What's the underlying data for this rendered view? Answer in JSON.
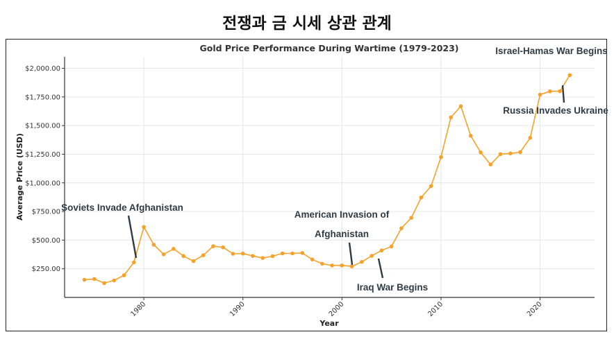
{
  "heading": "전쟁과 금 시세 상관 관계",
  "chart_data": {
    "type": "line",
    "title": "Gold Price Performance During Wartime (1979-2023)",
    "xlabel": "Year",
    "ylabel": "Average Price (USD)",
    "xlim": [
      1972,
      2025.5
    ],
    "ylim": [
      0,
      2100
    ],
    "x_ticks": [
      1980,
      1990,
      2000,
      2010,
      2020
    ],
    "y_ticks": [
      250,
      500,
      750,
      1000,
      1250,
      1500,
      1750,
      2000
    ],
    "y_tick_labels": [
      "$250.00",
      "$500.00",
      "$750.00",
      "$1,000.00",
      "$1,250.00",
      "$1,500.00",
      "$1,750.00",
      "$2,000.00"
    ],
    "grid": true,
    "line_color": "#f7a128",
    "series": [
      {
        "x": [
          1974,
          1975,
          1976,
          1977,
          1978,
          1979,
          1980,
          1981,
          1982,
          1983,
          1984,
          1985,
          1986,
          1987,
          1988,
          1989,
          1990,
          1991,
          1992,
          1993,
          1994,
          1995,
          1996,
          1997,
          1998,
          1999,
          2000,
          2001,
          2002,
          2003,
          2004,
          2005,
          2006,
          2007,
          2008,
          2009,
          2010,
          2011,
          2012,
          2013,
          2014,
          2015,
          2016,
          2017,
          2018,
          2019,
          2020,
          2021,
          2022,
          2023
        ],
        "values": [
          154,
          161,
          125,
          148,
          193,
          306,
          615,
          460,
          376,
          424,
          361,
          317,
          368,
          447,
          437,
          381,
          383,
          362,
          344,
          360,
          384,
          384,
          388,
          331,
          294,
          279,
          279,
          271,
          310,
          363,
          410,
          445,
          604,
          695,
          872,
          972,
          1225,
          1572,
          1669,
          1411,
          1266,
          1160,
          1251,
          1257,
          1268,
          1393,
          1770,
          1799,
          1800,
          1940
        ]
      }
    ],
    "annotations": [
      {
        "text": "Soviets Invade Afghanistan",
        "x": 1979,
        "y": 306
      },
      {
        "text": "American Invasion of",
        "text2": "Afghanistan",
        "x": 2001,
        "y": 271
      },
      {
        "text": "Iraq War Begins",
        "x": 2003,
        "y": 363
      },
      {
        "text": "Russia Invades Ukraine",
        "x": 2022,
        "y": 1800
      },
      {
        "text": "Israel-Hamas War Begins",
        "x": 2023,
        "y": 1940
      }
    ]
  }
}
